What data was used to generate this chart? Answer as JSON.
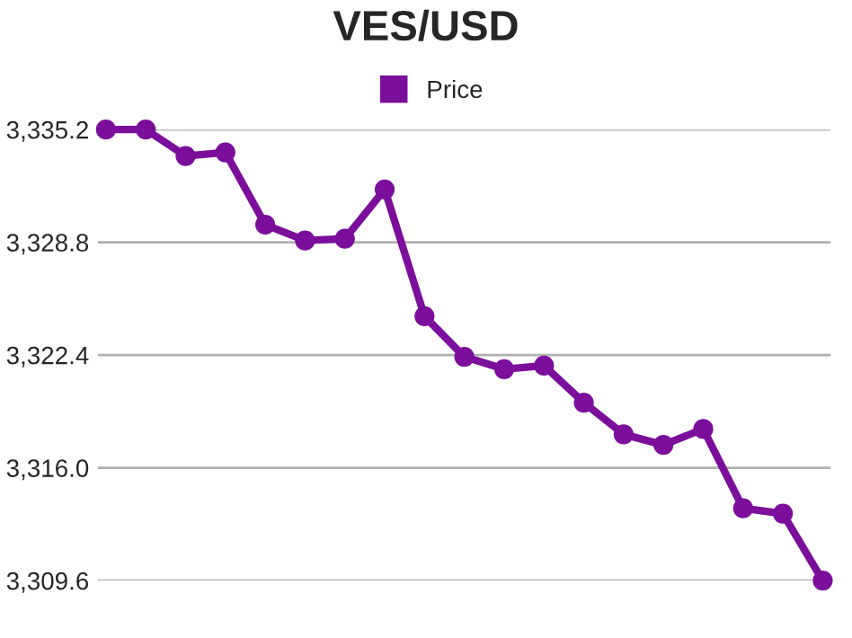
{
  "chart_data": {
    "type": "line",
    "title": "VES/USD",
    "categories": [
      null,
      null,
      null,
      null,
      null,
      null,
      null,
      null,
      null,
      null,
      null,
      null,
      null,
      null,
      null,
      null,
      null,
      null,
      null
    ],
    "series": [
      {
        "name": "Price",
        "color": "#7b0f9b",
        "values": [
          3335.2,
          3335.2,
          3333.7,
          3333.9,
          3329.8,
          3328.9,
          3329.0,
          3331.8,
          3324.6,
          3322.3,
          3321.6,
          3321.8,
          3319.7,
          3317.9,
          3317.3,
          3318.2,
          3313.7,
          3313.4,
          3309.6
        ]
      }
    ],
    "ylim": [
      3309.6,
      3335.2
    ],
    "yticks": [
      {
        "value": 3309.6,
        "label": "3,309.6"
      },
      {
        "value": 3316.0,
        "label": "3,316.0"
      },
      {
        "value": 3322.4,
        "label": "3,322.4"
      },
      {
        "value": 3328.8,
        "label": "3,328.8"
      },
      {
        "value": 3335.2,
        "label": "3,335.2"
      }
    ],
    "grid": "y",
    "legend": "top",
    "marker": "circle",
    "line_style": "solid"
  }
}
